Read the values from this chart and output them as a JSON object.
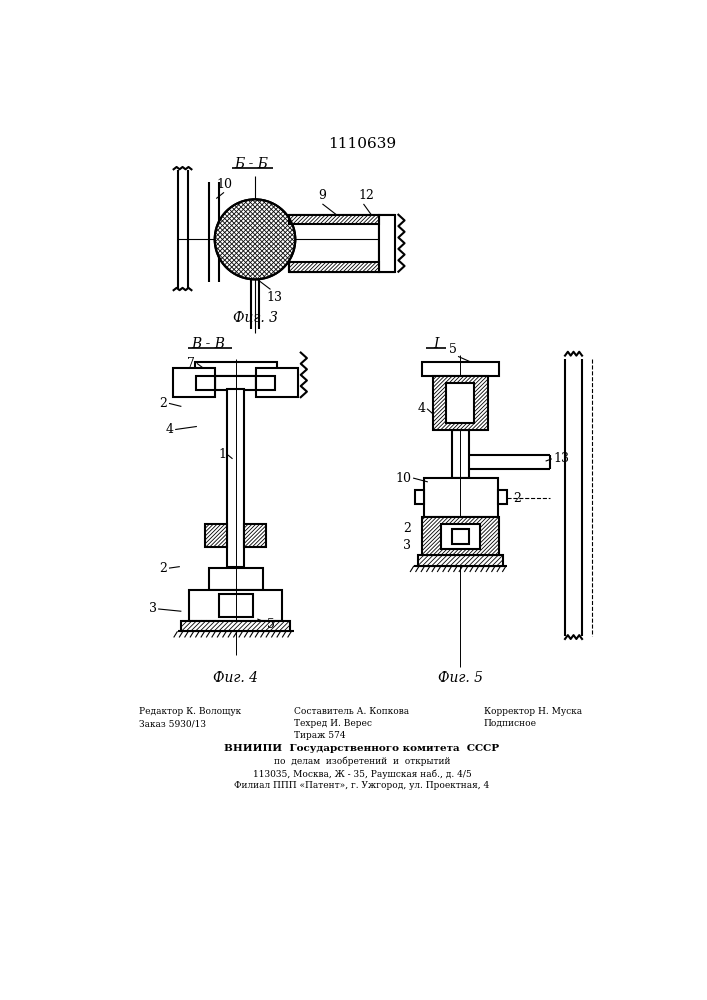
{
  "title": "1110639",
  "bg_color": "#ffffff",
  "line_color": "#000000",
  "fig3_label": "Фиг. 3",
  "fig4_label": "Фиг. 4",
  "fig5_label": "Фиг. 5",
  "section_bb": "Б - Б",
  "section_vv": "В - В",
  "section_I": "I",
  "footer_line1_left": "Редактор К. Волощук",
  "footer_line2_left": "Заказ 5930/13",
  "footer_line1_mid": "Техред И. Верес",
  "footer_line2_mid": "Тираж 574",
  "footer_line1_right": "Корректор Н. Муска",
  "footer_line2_right": "Подписное",
  "footer_vniip": "ВНИИПИ  Государственного комитета  СССР",
  "footer_addr1": "по  делам  изобретений  и  открытий",
  "footer_addr2": "113035, Москва, Ж - 35, Раушская наб., д. 4/5",
  "footer_addr3": "Филиал ППП «Патент», г. Ужгород, ул. Проектная, 4",
  "footer_sostavitel": "Составитель А. Копкова"
}
